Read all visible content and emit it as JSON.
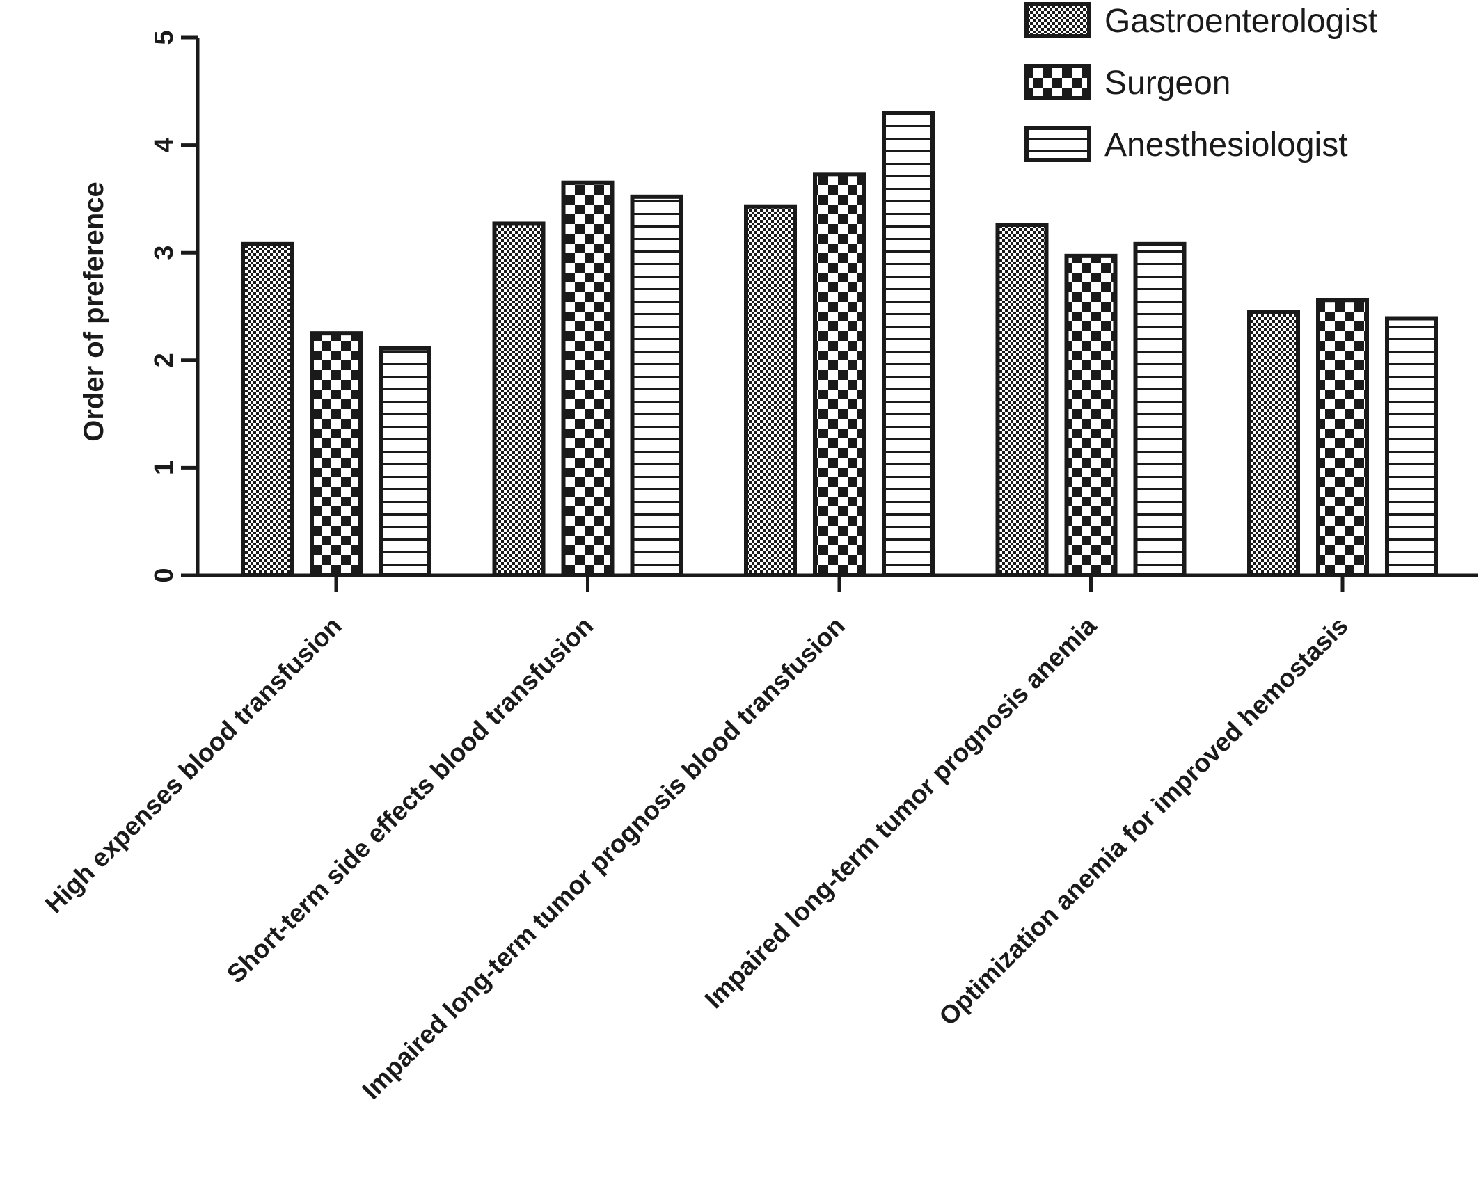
{
  "chart_data": {
    "type": "bar",
    "title": "",
    "xlabel": "",
    "ylabel": "Order of preference",
    "ylim": [
      0,
      5
    ],
    "yticks": [
      0,
      1,
      2,
      3,
      4,
      5
    ],
    "grid": false,
    "legend_position": "top-right",
    "categories": [
      "High expenses blood transfusion",
      "Short-term side effects blood transfusion",
      "Impaired long-term tumor prognosis blood transfusion",
      "Impaired long-term tumor prognosis anemia",
      "Optimization anemia for improved hemostasis"
    ],
    "series": [
      {
        "name": "Gastroenterologist",
        "pattern": "fine-checker",
        "values": [
          3.08,
          3.27,
          3.43,
          3.26,
          2.45
        ]
      },
      {
        "name": "Surgeon",
        "pattern": "coarse-checker",
        "values": [
          2.25,
          3.65,
          3.73,
          2.97,
          2.56
        ]
      },
      {
        "name": "Anesthesiologist",
        "pattern": "horizontal-stripes",
        "values": [
          2.11,
          3.52,
          4.3,
          3.08,
          2.39
        ]
      }
    ],
    "colors": {
      "ink": "#1a1a1a",
      "background": "#ffffff"
    }
  }
}
